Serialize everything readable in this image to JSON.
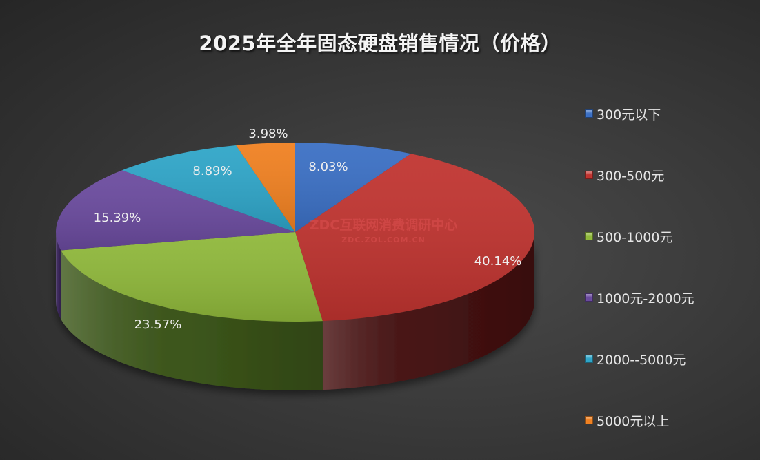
{
  "chart_data": {
    "type": "pie",
    "subtype": "3d-pie",
    "title": "2025年全年固态硬盘销售情况（价格）",
    "categories": [
      "300元以下",
      "300-500元",
      "500-1000元",
      "1000元-2000元",
      "2000--5000元",
      "5000元以上"
    ],
    "values": [
      8.03,
      40.14,
      23.57,
      15.39,
      8.89,
      3.98
    ],
    "labels": [
      "8.03%",
      "40.14%",
      "23.57%",
      "15.39%",
      "8.89%",
      "3.98%"
    ],
    "colors": [
      "#3a6fc4",
      "#c0332f",
      "#8fb83a",
      "#6a4a9e",
      "#2ea5c8",
      "#f08020"
    ],
    "side_colors": [
      "#234a85",
      "#4a1414",
      "#3f5a1c",
      "#3e2a60",
      "#186a82",
      "#8a4610"
    ],
    "start_angle": "12 o'clock",
    "direction": "clockwise",
    "legend_position": "right",
    "unit": "%"
  },
  "watermark": {
    "line1": "ZDC互联网消费调研中心",
    "line2": "ZDC.ZOL.COM.CN"
  }
}
